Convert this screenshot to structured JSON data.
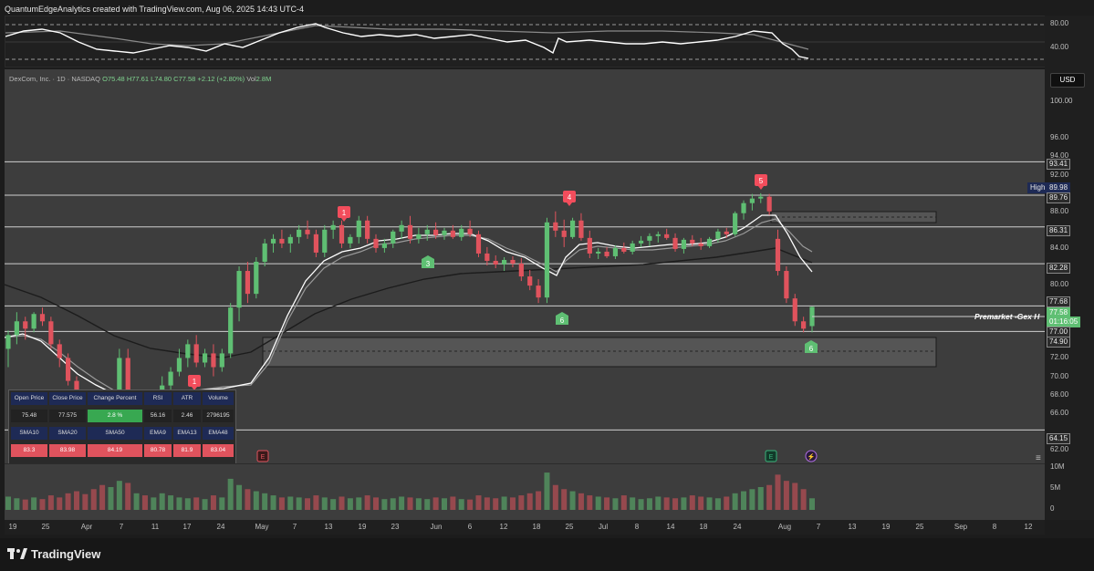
{
  "header": {
    "attribution": "QuantumEdgeAnalytics created with TradingView.com, Aug 06, 2025 14:43 UTC-4"
  },
  "legend": {
    "symbol": "DexCom, Inc. · 1D · NASDAQ",
    "open": "O75.48",
    "high": "H77.61",
    "low": "L74.80",
    "close": "C77.58",
    "change": "+2.12 (+2.80%)",
    "volume_label": "Vol",
    "volume": "2.8M"
  },
  "currency": "USD",
  "rsi_axis": {
    "top": "80.00",
    "bottom": "40.00"
  },
  "price_axis_labels": [
    "100.00",
    "96.00",
    "94.00",
    "92.00",
    "88.00",
    "84.00",
    "80.00",
    "74.00",
    "72.00",
    "70.00",
    "68.00",
    "66.00",
    "62.00"
  ],
  "price_boxes": {
    "l1": "93.41",
    "high_tag": "High",
    "high": "89.98",
    "l2": "89.76",
    "l3": "86.31",
    "l4": "82.28",
    "l5": "77.68",
    "last": "77.58",
    "countdown": "01:16:05",
    "l6": "77.00",
    "l7": "74.90",
    "l8": "64.15"
  },
  "volume_axis": {
    "top": "10M",
    "mid": "5M",
    "bottom": "0"
  },
  "annotation": "Premarket -Gex H",
  "time_axis": [
    "19",
    "25",
    "Apr",
    "7",
    "11",
    "17",
    "24",
    "May",
    "7",
    "13",
    "19",
    "23",
    "Jun",
    "6",
    "12",
    "18",
    "25",
    "Jul",
    "8",
    "14",
    "18",
    "24",
    "Aug",
    "7",
    "13",
    "19",
    "25",
    "Sep",
    "8",
    "12"
  ],
  "markers": {
    "red": [
      "1",
      "1",
      "4",
      "5"
    ],
    "green": [
      "3",
      "6",
      "6"
    ],
    "events": [
      "E",
      "E",
      "⚡"
    ]
  },
  "stats_table": {
    "headers": [
      "Open Price",
      "Close Price",
      "Change Percent",
      "RSI",
      "ATR",
      "Volume"
    ],
    "values": [
      "75.48",
      "77.575",
      "2.8 %",
      "56.16",
      "2.46",
      "2796195"
    ],
    "ma_headers": [
      "SMA10",
      "SMA20",
      "SMA50",
      "EMA9",
      "EMA13",
      "EMA48"
    ],
    "ma_values": [
      "83.3",
      "83.98",
      "84.19",
      "80.78",
      "81.9",
      "83.04"
    ]
  },
  "footer": {
    "brand": "TradingView"
  },
  "colors": {
    "bull": "#5fbf73",
    "bear": "#e0535d",
    "background": "#3d3d3d",
    "accent_blue": "#1e2a55"
  },
  "chart_data": {
    "type": "candlestick",
    "ohlc": [
      [
        73,
        75,
        71,
        74.5
      ],
      [
        74.5,
        77,
        73.5,
        76
      ],
      [
        76,
        76.5,
        74,
        75.2
      ],
      [
        75.2,
        77,
        74.8,
        76.8
      ],
      [
        76.8,
        77.5,
        75.5,
        76
      ],
      [
        76,
        76.5,
        73,
        73.5
      ],
      [
        73.5,
        74,
        71,
        72
      ],
      [
        72,
        72.5,
        69,
        69.5
      ],
      [
        69.5,
        70,
        66,
        67
      ],
      [
        67,
        67.5,
        63,
        64
      ],
      [
        64,
        65,
        61,
        62
      ],
      [
        62,
        63,
        60,
        61.5
      ],
      [
        61.5,
        66,
        61,
        65
      ],
      [
        65,
        73,
        64,
        72
      ],
      [
        72,
        73,
        64,
        65
      ],
      [
        65,
        67,
        64,
        66
      ],
      [
        66,
        66.5,
        63.5,
        64.5
      ],
      [
        64.5,
        66,
        64,
        65.5
      ],
      [
        65.5,
        70,
        65,
        69
      ],
      [
        69,
        71,
        68,
        70.5
      ],
      [
        70.5,
        73,
        70,
        72
      ],
      [
        72,
        74,
        71,
        73.5
      ],
      [
        73.5,
        74.5,
        71,
        71.5
      ],
      [
        71.5,
        73,
        71,
        72.5
      ],
      [
        72.5,
        73.5,
        70,
        71
      ],
      [
        71,
        73,
        70.5,
        72.5
      ],
      [
        72.5,
        78,
        72,
        77.5
      ],
      [
        77.5,
        82,
        76,
        81.5
      ],
      [
        81.5,
        82.5,
        78,
        79
      ],
      [
        79,
        83,
        78.5,
        82.5
      ],
      [
        82.5,
        85,
        82,
        84.5
      ],
      [
        84.5,
        85.5,
        83.5,
        85
      ],
      [
        85,
        86,
        84,
        84.5
      ],
      [
        84.5,
        85.5,
        83.5,
        85.2
      ],
      [
        85.2,
        86.5,
        84.5,
        86
      ],
      [
        86,
        87,
        85,
        85.5
      ],
      [
        85.5,
        86,
        83,
        83.5
      ],
      [
        83.5,
        86.5,
        83,
        86
      ],
      [
        86,
        87,
        85,
        86.5
      ],
      [
        86.5,
        87,
        84,
        84.5
      ],
      [
        84.5,
        85.5,
        84,
        85.2
      ],
      [
        85.2,
        87.5,
        84.5,
        87
      ],
      [
        87,
        87.5,
        84.5,
        85
      ],
      [
        85,
        85.5,
        83.5,
        84
      ],
      [
        84,
        85,
        83.5,
        84.5
      ],
      [
        84.5,
        86,
        84,
        85.8
      ],
      [
        85.8,
        87,
        85,
        86.5
      ],
      [
        86.5,
        87.5,
        84.5,
        85
      ],
      [
        85,
        86.2,
        84.5,
        85.5
      ],
      [
        85.5,
        86.5,
        84.8,
        86
      ],
      [
        86,
        86.8,
        85,
        85.4
      ],
      [
        85.4,
        86.2,
        84.9,
        85.9
      ],
      [
        85.9,
        86.5,
        85,
        85.2
      ],
      [
        85.2,
        86.5,
        84.8,
        86.1
      ],
      [
        86.1,
        87,
        85.2,
        85.5
      ],
      [
        85.5,
        85.9,
        83,
        83.4
      ],
      [
        83.4,
        84.1,
        82.1,
        82.6
      ],
      [
        82.6,
        83.2,
        81.8,
        82.2
      ],
      [
        82.2,
        83,
        81.5,
        82.7
      ],
      [
        82.7,
        83.1,
        81.9,
        82.3
      ],
      [
        82.3,
        82.9,
        80.4,
        80.9
      ],
      [
        80.9,
        81.6,
        79.4,
        79.9
      ],
      [
        79.9,
        80.6,
        78,
        78.6
      ],
      [
        78.6,
        87.3,
        78,
        86.8
      ],
      [
        86.8,
        88,
        85.2,
        85.9
      ],
      [
        85.9,
        87.1,
        84.1,
        85.2
      ],
      [
        85.2,
        87.3,
        85,
        87
      ],
      [
        87,
        87.8,
        84.8,
        85.1
      ],
      [
        85.1,
        85.9,
        82.9,
        83.4
      ],
      [
        83.4,
        84,
        82.8,
        83.6
      ],
      [
        83.6,
        84.1,
        82.9,
        83.1
      ],
      [
        83.1,
        84.3,
        82.8,
        84
      ],
      [
        84,
        84.6,
        83.4,
        83.6
      ],
      [
        83.6,
        84.8,
        83.3,
        84.5
      ],
      [
        84.5,
        85.3,
        84.1,
        84.8
      ],
      [
        84.8,
        85.6,
        84.2,
        85.3
      ],
      [
        85.3,
        85.8,
        84.6,
        85.5
      ],
      [
        85.5,
        86.1,
        84.9,
        85.1
      ],
      [
        85.1,
        85.6,
        83.6,
        83.9
      ],
      [
        83.9,
        85.1,
        83.4,
        84.9
      ],
      [
        84.9,
        85.4,
        84.2,
        84.5
      ],
      [
        84.5,
        85.1,
        83.8,
        84.2
      ],
      [
        84.2,
        85.2,
        84,
        85
      ],
      [
        85,
        86.1,
        84.6,
        85.8
      ],
      [
        85.8,
        86.2,
        85.1,
        85.5
      ],
      [
        85.5,
        88,
        85.3,
        87.8
      ],
      [
        87.8,
        89.2,
        87.1,
        88.9
      ],
      [
        88.9,
        89.9,
        88.1,
        89.4
      ],
      [
        89.4,
        89.98,
        88.9,
        89.6
      ],
      [
        89.6,
        89.9,
        87.6,
        88
      ],
      [
        85,
        86,
        81,
        81.5
      ],
      [
        81.5,
        82,
        78,
        78.5
      ],
      [
        78.5,
        79,
        75.5,
        76
      ],
      [
        76,
        76.5,
        74.8,
        75.2
      ],
      [
        75.48,
        77.61,
        74.8,
        77.58
      ]
    ],
    "volume_millions": [
      3.2,
      2.8,
      2.5,
      3,
      2.6,
      3.5,
      3,
      4,
      4.5,
      3.8,
      5,
      6,
      5.5,
      7,
      6.5,
      4,
      3.5,
      3,
      4,
      3.5,
      3,
      2.8,
      3,
      2.6,
      3.5,
      3,
      7.5,
      6,
      5,
      4.5,
      4,
      3.5,
      3,
      3.2,
      3,
      2.8,
      3.5,
      3,
      2.6,
      3.2,
      2.8,
      3,
      3.5,
      3,
      2.6,
      2.8,
      3.2,
      3,
      2.8,
      2.6,
      3,
      2.8,
      3.2,
      2.6,
      2.5,
      3.5,
      3,
      2.8,
      3.2,
      3,
      3.5,
      4,
      4.5,
      9,
      6,
      5,
      4.5,
      4,
      3.5,
      3.2,
      3,
      2.8,
      3.5,
      3,
      2.6,
      2.8,
      3.2,
      3,
      2.8,
      3,
      3.5,
      3.2,
      3,
      2.8,
      3.2,
      4,
      4.5,
      5,
      5.5,
      6,
      8.5,
      7,
      6.5,
      5,
      2.8
    ]
  }
}
